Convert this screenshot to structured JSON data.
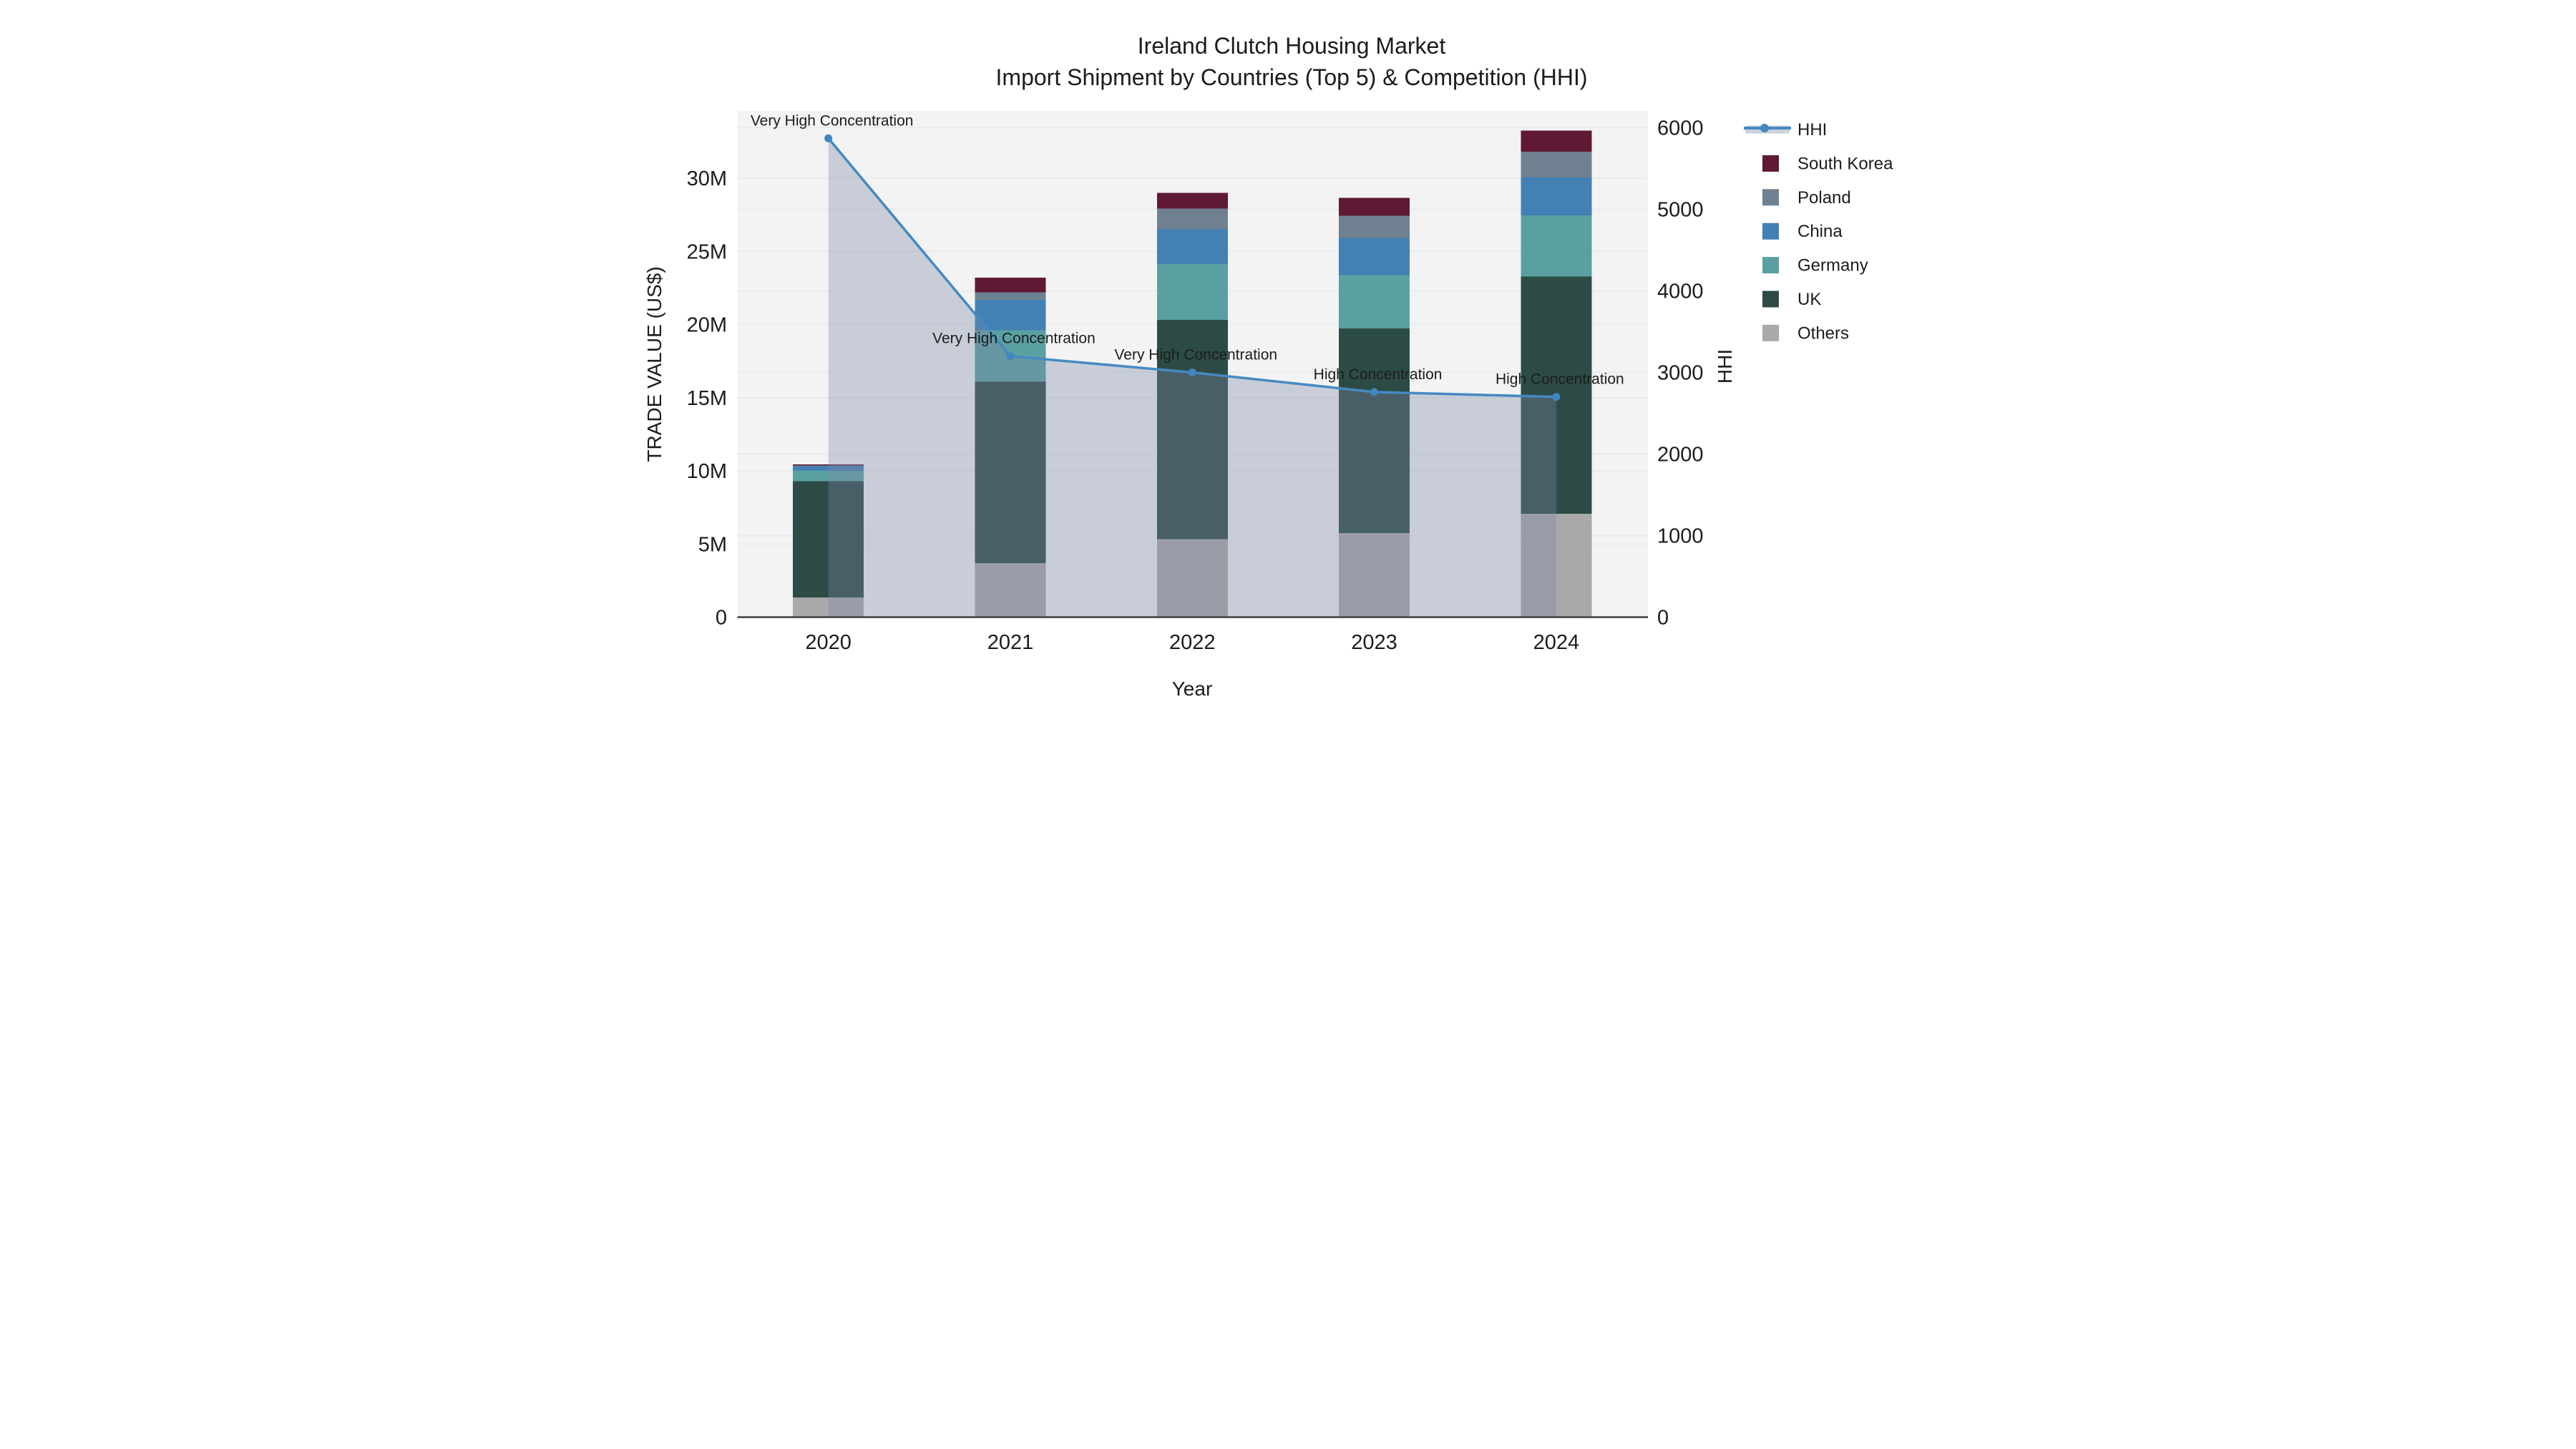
{
  "title": {
    "line1": "Ireland Clutch Housing Market",
    "line2": "Import Shipment by Countries (Top 5) & Competition (HHI)"
  },
  "axes": {
    "x_title": "Year",
    "y_left_title": "TRADE VALUE (US$)",
    "y_right_title": "HHI",
    "y_left_tick_labels": [
      "0",
      "5M",
      "10M",
      "15M",
      "20M",
      "25M",
      "30M"
    ],
    "y_right_tick_labels": [
      "0",
      "1000",
      "2000",
      "3000",
      "4000",
      "5000",
      "6000"
    ]
  },
  "legend": {
    "items": [
      {
        "label": "HHI",
        "type": "line"
      },
      {
        "label": "South Korea",
        "type": "swatch",
        "color": "#5f1935"
      },
      {
        "label": "Poland",
        "type": "swatch",
        "color": "#6f8191"
      },
      {
        "label": "China",
        "type": "swatch",
        "color": "#4380b4"
      },
      {
        "label": "Germany",
        "type": "swatch",
        "color": "#5ba0a1"
      },
      {
        "label": "UK",
        "type": "swatch",
        "color": "#2d4b46"
      },
      {
        "label": "Others",
        "type": "swatch",
        "color": "#a9a9a9"
      }
    ]
  },
  "chart_data": {
    "type": "combo-stacked-bar-line",
    "categories": [
      "2020",
      "2021",
      "2022",
      "2023",
      "2024"
    ],
    "bar_value_unit": "million US$",
    "series": [
      {
        "name": "Others",
        "color": "#a9a9a9",
        "values": [
          1.35,
          3.7,
          5.33,
          5.74,
          7.07
        ]
      },
      {
        "name": "UK",
        "color": "#2d4b46",
        "values": [
          7.95,
          12.4,
          15.0,
          14.0,
          16.2
        ]
      },
      {
        "name": "Germany",
        "color": "#5ba0a1",
        "values": [
          0.73,
          3.5,
          3.8,
          3.64,
          4.2
        ]
      },
      {
        "name": "China",
        "color": "#4380b4",
        "values": [
          0.29,
          2.1,
          2.37,
          2.55,
          2.59
        ]
      },
      {
        "name": "Poland",
        "color": "#6f8191",
        "values": [
          0.06,
          0.5,
          1.42,
          1.51,
          1.76
        ]
      },
      {
        "name": "South Korea",
        "color": "#5f1935",
        "values": [
          0.07,
          1.0,
          1.07,
          1.22,
          1.44
        ]
      }
    ],
    "bar_totals": [
      10.45,
      23.2,
      28.99,
      28.66,
      33.26
    ],
    "line_series": {
      "name": "HHI",
      "axis": "right",
      "color": "#4689c2",
      "marker_color": "#4186be",
      "area_fill_color": "rgba(125,135,165,0.35)",
      "legend_band_color": "#c9d2dd",
      "values": [
        5870,
        3200,
        3000,
        2760,
        2700
      ]
    },
    "annotations": [
      {
        "category": "2020",
        "text": "Very High Concentration"
      },
      {
        "category": "2021",
        "text": "Very High Concentration"
      },
      {
        "category": "2022",
        "text": "Very High Concentration"
      },
      {
        "category": "2023",
        "text": "High Concentration"
      },
      {
        "category": "2024",
        "text": "High Concentration"
      }
    ],
    "y_left": {
      "title": "TRADE VALUE (US$)",
      "min": 0,
      "max_m": 34.6,
      "tick_step_m": 5
    },
    "y_right": {
      "title": "HHI",
      "min": 0,
      "max": 6206,
      "tick_step": 1000
    },
    "grid": true,
    "plot_bg": "#f2f3f2",
    "grid_color": "#e7e9ea",
    "baseline_color": "#3e3e3e",
    "legend_position": "right"
  }
}
